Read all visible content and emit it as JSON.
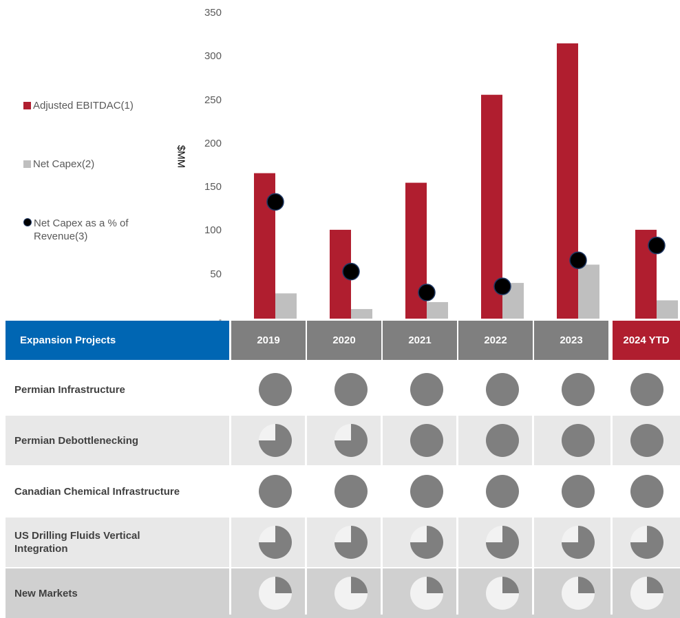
{
  "legend": {
    "items": [
      {
        "label": "Adjusted EBITDAC(1)"
      },
      {
        "label": "Net Capex(2)"
      },
      {
        "label_line1": "Net Capex as a % of",
        "label_line2": "Revenue(3)"
      }
    ]
  },
  "colors": {
    "ebitdac": "#b01e2f",
    "capex": "#bfbfbf",
    "marker": "#000000",
    "marker_outline": "#1f3864",
    "header_blue": "#0066b3",
    "header_gray": "#7f7f7f",
    "header_highlight": "#b01e2f",
    "pie_fill": "#7f7f7f",
    "pie_empty": "#f2f2f2"
  },
  "chart_data": {
    "type": "bar",
    "categories": [
      "2019",
      "2020",
      "2021",
      "2022",
      "2023",
      "2024 YTD"
    ],
    "series": [
      {
        "name": "Adjusted EBITDAC(1)",
        "values": [
          167,
          102,
          156,
          257,
          316,
          102
        ]
      },
      {
        "name": "Net Capex(2)",
        "values": [
          29,
          11,
          19,
          41,
          62,
          21
        ]
      },
      {
        "name": "Net Capex as a % of Revenue(3)",
        "type": "scatter",
        "values": [
          134,
          54,
          30,
          37,
          67,
          84
        ]
      }
    ],
    "ylabel": "$MM",
    "ylim": [
      0,
      350
    ],
    "yticks": [
      "-",
      "50",
      "100",
      "150",
      "200",
      "250",
      "300",
      "350"
    ],
    "grid": false,
    "legend_position": "left"
  },
  "table": {
    "header": "Expansion Projects",
    "years": [
      "2019",
      "2020",
      "2021",
      "2022",
      "2023",
      "2024 YTD"
    ],
    "rows": [
      {
        "label": "Permian Infrastructure",
        "fills": [
          1,
          1,
          1,
          1,
          1,
          1
        ]
      },
      {
        "label": "Permian Debottlenecking",
        "fills": [
          0.75,
          0.75,
          1,
          1,
          1,
          1
        ]
      },
      {
        "label": "Canadian Chemical Infrastructure",
        "fills": [
          1,
          1,
          1,
          1,
          1,
          1
        ]
      },
      {
        "label_line1": "US Drilling Fluids Vertical",
        "label_line2": "Integration",
        "fills": [
          0.75,
          0.75,
          0.75,
          0.75,
          0.75,
          0.75
        ]
      },
      {
        "label": "New Markets",
        "fills": [
          0.25,
          0.25,
          0.25,
          0.25,
          0.25,
          0.25
        ]
      }
    ]
  }
}
